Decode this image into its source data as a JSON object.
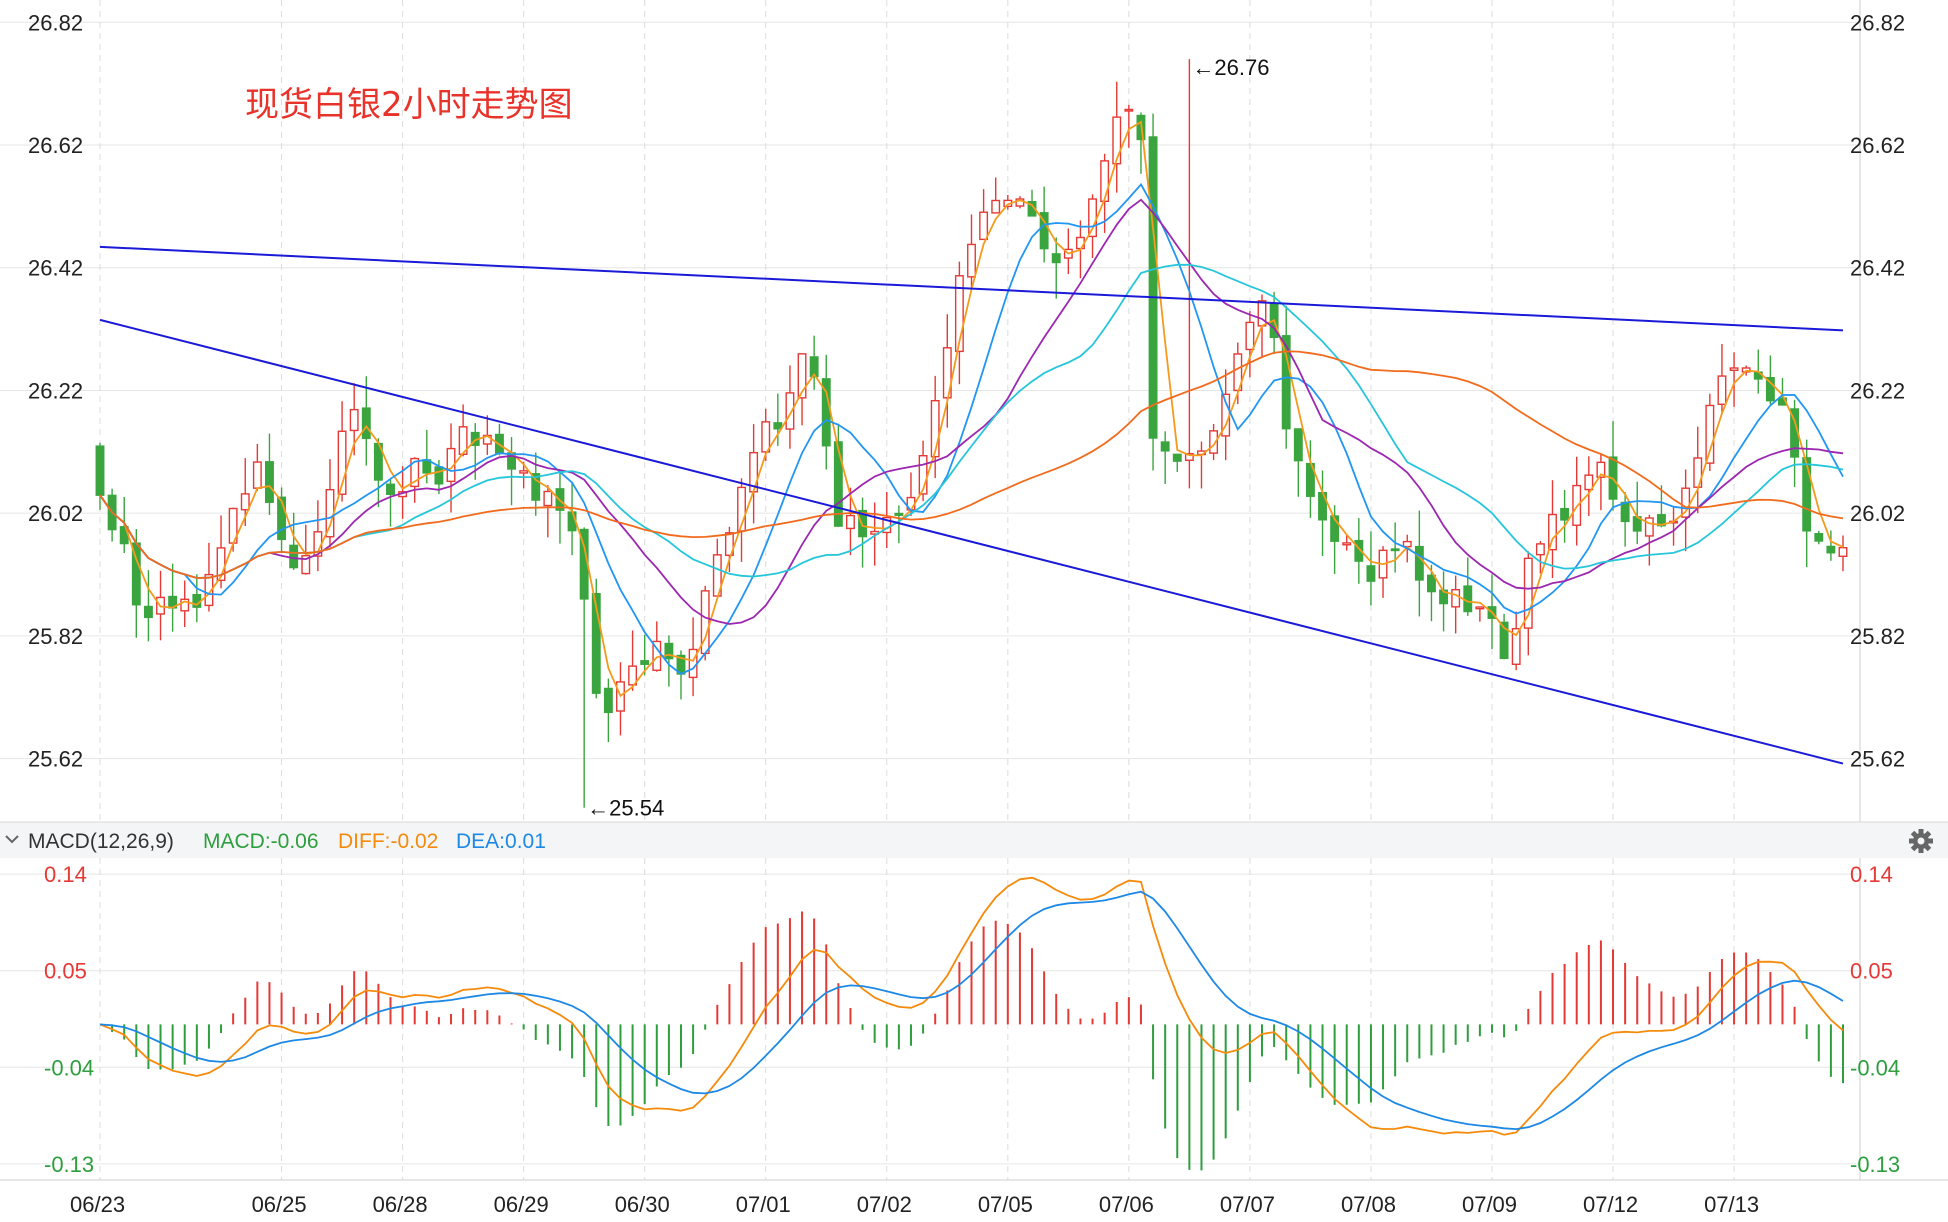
{
  "chart_data": {
    "type": "candlestick",
    "title": "现货白银2小时走势图",
    "price_axis": {
      "ticks": [
        26.82,
        26.62,
        26.42,
        26.22,
        26.02,
        25.82,
        25.62
      ],
      "range": [
        25.52,
        26.84
      ]
    },
    "macd_axis": {
      "ticks": [
        0.14,
        0.05,
        -0.04,
        -0.13
      ],
      "range": [
        -0.145,
        0.155
      ]
    },
    "dates": [
      "06/23",
      "06/25",
      "06/28",
      "06/29",
      "06/30",
      "07/01",
      "07/02",
      "07/05",
      "07/06",
      "07/07",
      "07/08",
      "07/09",
      "07/12",
      "07/13"
    ],
    "date_bar_index": [
      0,
      15,
      25,
      35,
      45,
      55,
      65,
      75,
      85,
      95,
      105,
      115,
      125,
      135
    ],
    "bar_count": 145,
    "anchors": [
      [
        0,
        26.05
      ],
      [
        2,
        25.98
      ],
      [
        4,
        25.88
      ],
      [
        6,
        25.86
      ],
      [
        8,
        25.9
      ],
      [
        10,
        25.87
      ],
      [
        12,
        25.93
      ],
      [
        14,
        26.05
      ],
      [
        16,
        26.08
      ],
      [
        18,
        25.98
      ],
      [
        20,
        25.95
      ],
      [
        22,
        25.96
      ],
      [
        24,
        26.12
      ],
      [
        26,
        26.17
      ],
      [
        28,
        26.08
      ],
      [
        30,
        26.04
      ],
      [
        32,
        26.1
      ],
      [
        34,
        26.06
      ],
      [
        36,
        26.13
      ],
      [
        38,
        26.15
      ],
      [
        40,
        26.11
      ],
      [
        42,
        26.1
      ],
      [
        44,
        26.06
      ],
      [
        46,
        26.03
      ],
      [
        48,
        25.98
      ],
      [
        49,
        25.88
      ],
      [
        50,
        25.78
      ],
      [
        51,
        25.7
      ],
      [
        53,
        25.75
      ],
      [
        55,
        25.78
      ],
      [
        57,
        25.82
      ],
      [
        59,
        25.76
      ],
      [
        61,
        25.85
      ],
      [
        63,
        25.95
      ],
      [
        65,
        26.08
      ],
      [
        67,
        26.13
      ],
      [
        69,
        26.18
      ],
      [
        71,
        26.28
      ],
      [
        73,
        26.22
      ],
      [
        75,
        26.02
      ],
      [
        77,
        25.99
      ],
      [
        79,
        26.02
      ],
      [
        81,
        26.03
      ],
      [
        83,
        26.08
      ],
      [
        85,
        26.22
      ],
      [
        87,
        26.4
      ],
      [
        89,
        26.47
      ],
      [
        91,
        26.52
      ],
      [
        93,
        26.55
      ],
      [
        95,
        26.48
      ],
      [
        97,
        26.44
      ],
      [
        99,
        26.46
      ],
      [
        101,
        26.53
      ],
      [
        103,
        26.65
      ],
      [
        105,
        26.68
      ],
      [
        106,
        26.61
      ],
      [
        107,
        26.1
      ],
      [
        109,
        26.12
      ],
      [
        111,
        26.1
      ],
      [
        113,
        26.14
      ],
      [
        115,
        26.28
      ],
      [
        117,
        26.36
      ],
      [
        119,
        26.33
      ],
      [
        121,
        26.1
      ],
      [
        123,
        26.05
      ],
      [
        125,
        26.0
      ],
      [
        127,
        25.95
      ],
      [
        129,
        25.93
      ],
      [
        131,
        25.94
      ],
      [
        133,
        25.96
      ],
      [
        135,
        25.88
      ],
      [
        137,
        25.9
      ],
      [
        139,
        25.88
      ],
      [
        141,
        25.84
      ],
      [
        143,
        25.78
      ],
      [
        145,
        25.92
      ],
      [
        147,
        26.0
      ],
      [
        149,
        26.02
      ],
      [
        151,
        26.1
      ],
      [
        153,
        26.08
      ],
      [
        155,
        26.0
      ],
      [
        157,
        26.02
      ],
      [
        159,
        25.98
      ],
      [
        161,
        26.04
      ],
      [
        163,
        26.19
      ],
      [
        165,
        26.23
      ],
      [
        167,
        26.28
      ],
      [
        169,
        26.24
      ],
      [
        171,
        26.18
      ],
      [
        173,
        26.02
      ],
      [
        175,
        25.96
      ],
      [
        177,
        25.96
      ]
    ],
    "trendlines": [
      {
        "from": [
          0,
          26.454
        ],
        "to": [
          144,
          26.318
        ],
        "color": "#1a1ad8"
      },
      {
        "from": [
          0,
          26.335
        ],
        "to": [
          144,
          25.612
        ],
        "color": "#1a1ad8"
      }
    ],
    "moving_averages": [
      {
        "period": 3,
        "color": "#f59a1c"
      },
      {
        "period": 8,
        "color": "#2196f3"
      },
      {
        "period": 15,
        "color": "#9c27b0"
      },
      {
        "period": 22,
        "color": "#26c6da"
      },
      {
        "period": 45,
        "color": "#f26b1d"
      }
    ],
    "annotations": [
      {
        "text": "←26.76",
        "bar": 90,
        "price": 26.76
      },
      {
        "text": "←25.54",
        "bar": 40,
        "price": 25.54
      }
    ],
    "macd": {
      "label": "MACD(12,26,9)",
      "macd_text": "MACD:-0.06",
      "diff_text": "DIFF:-0.02",
      "dea_text": "DEA:0.01",
      "diff_color": "#f58a0b",
      "dea_color": "#1e88e5",
      "positive_color": "#e53935",
      "negative_color": "#2e9e3e"
    }
  },
  "colors": {
    "up": "#e53935",
    "down": "#3aa53f",
    "grid": "#e6e6e6",
    "vgrid": "#dcdcdc"
  },
  "icons": {
    "collapse": "chevron-down-icon",
    "settings": "gear-icon"
  }
}
